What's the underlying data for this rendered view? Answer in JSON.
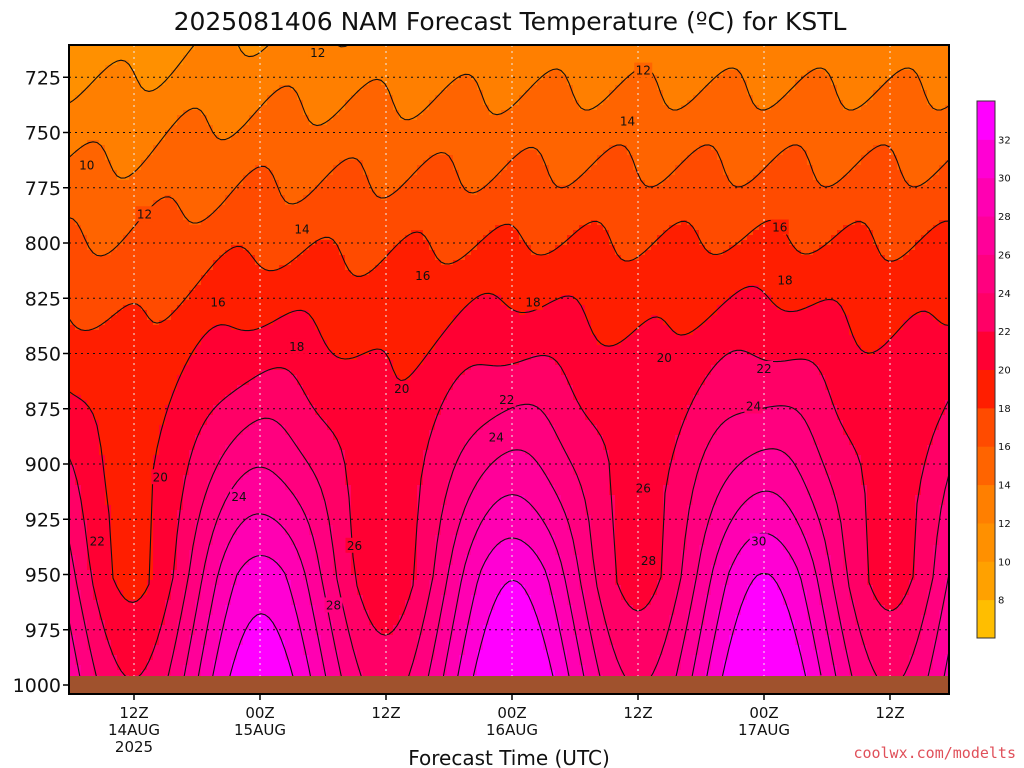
{
  "chart_data": {
    "type": "heatmap",
    "title": "2025081406 NAM Forecast Temperature (ºC) for KSTL",
    "xlabel": "Forecast Time (UTC)",
    "ylabel": "",
    "y_axis": {
      "scale": "pressure",
      "ylim": [
        1005,
        700
      ],
      "inverted": true,
      "ticks": [
        725,
        750,
        775,
        800,
        825,
        850,
        875,
        900,
        925,
        950,
        975,
        1000
      ]
    },
    "x_axis": {
      "units": "hours since 2025-08-14 06Z",
      "xlim": [
        0,
        66
      ],
      "ticks": [
        {
          "hour": 6,
          "lines": [
            "12Z",
            "14AUG",
            "2025"
          ]
        },
        {
          "hour": 18,
          "lines": [
            "00Z",
            "15AUG"
          ]
        },
        {
          "hour": 30,
          "lines": [
            "12Z"
          ]
        },
        {
          "hour": 42,
          "lines": [
            "00Z",
            "16AUG"
          ]
        },
        {
          "hour": 54,
          "lines": [
            "12Z"
          ]
        },
        {
          "hour": 66,
          "lines": [
            "00Z",
            "17AUG"
          ]
        },
        {
          "hour": 78,
          "lines": [
            "12Z"
          ]
        }
      ]
    },
    "grid": true,
    "contour_interval": 2,
    "colorbar": {
      "levels": [
        6,
        8,
        10,
        12,
        14,
        16,
        18,
        20,
        22,
        24,
        26,
        28,
        30,
        32,
        34
      ],
      "labels": [
        "8",
        "10",
        "12",
        "14",
        "16",
        "18",
        "20",
        "22",
        "24",
        "26",
        "28",
        "30",
        "32"
      ],
      "colors": [
        "#ffbe00",
        "#ffa100",
        "#ff9000",
        "#ff7f00",
        "#ff6400",
        "#ff4b00",
        "#ff1e00",
        "#ff0033",
        "#ff0066",
        "#ff007f",
        "#ff0099",
        "#ff00b2",
        "#ff00d4",
        "#ff00ff"
      ]
    },
    "ground_color": "#a0522d",
    "contour_labels": [
      {
        "text": "10",
        "hour": 1.5,
        "p": 765
      },
      {
        "text": "12",
        "hour": 23.5,
        "p": 714
      },
      {
        "text": "12",
        "hour": 54.5,
        "p": 722
      },
      {
        "text": "12",
        "hour": 7.0,
        "p": 787
      },
      {
        "text": "14",
        "hour": 22.0,
        "p": 794
      },
      {
        "text": "14",
        "hour": 53.0,
        "p": 745
      },
      {
        "text": "16",
        "hour": 14.0,
        "p": 827
      },
      {
        "text": "16",
        "hour": 33.5,
        "p": 815
      },
      {
        "text": "16",
        "hour": 67.5,
        "p": 793
      },
      {
        "text": "18",
        "hour": 21.5,
        "p": 847
      },
      {
        "text": "18",
        "hour": 44.0,
        "p": 827
      },
      {
        "text": "18",
        "hour": 68.0,
        "p": 817
      },
      {
        "text": "20",
        "hour": 8.5,
        "p": 906
      },
      {
        "text": "20",
        "hour": 31.5,
        "p": 866
      },
      {
        "text": "20",
        "hour": 56.5,
        "p": 852
      },
      {
        "text": "22",
        "hour": 2.5,
        "p": 935
      },
      {
        "text": "22",
        "hour": 41.5,
        "p": 871
      },
      {
        "text": "22",
        "hour": 66.0,
        "p": 857
      },
      {
        "text": "24",
        "hour": 16.0,
        "p": 915
      },
      {
        "text": "24",
        "hour": 40.5,
        "p": 888
      },
      {
        "text": "24",
        "hour": 65.0,
        "p": 874
      },
      {
        "text": "26",
        "hour": 27.0,
        "p": 937
      },
      {
        "text": "26",
        "hour": 54.5,
        "p": 911
      },
      {
        "text": "28",
        "hour": 25.0,
        "p": 964
      },
      {
        "text": "28",
        "hour": 55.0,
        "p": 944
      },
      {
        "text": "30",
        "hour": 65.5,
        "p": 935
      }
    ]
  },
  "watermark": "coolwx.com/modelts"
}
